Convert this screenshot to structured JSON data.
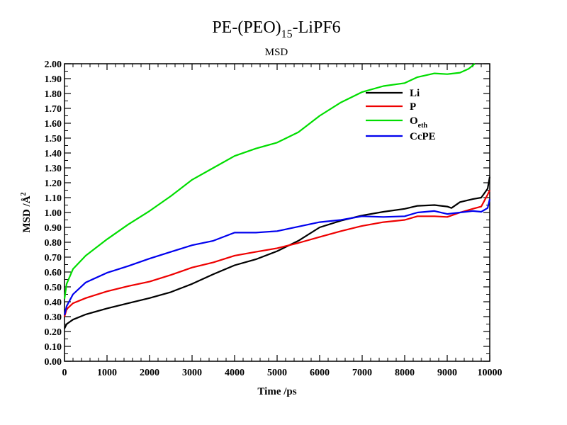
{
  "chart_data": {
    "type": "line",
    "title": {
      "main": "PE-(PEO)",
      "sub": "15",
      "rest": "-LiPF6"
    },
    "subtitle": "MSD",
    "xlabel": "Time /ps",
    "ylabel": {
      "main": "MSD /Å",
      "sup": "2"
    },
    "xlim": [
      0,
      10000
    ],
    "ylim": [
      0,
      2.0
    ],
    "xticks": [
      "0",
      "1000",
      "2000",
      "3000",
      "4000",
      "5000",
      "6000",
      "7000",
      "8000",
      "9000",
      "10000"
    ],
    "yticks": [
      "0.00",
      "0.10",
      "0.20",
      "0.30",
      "0.40",
      "0.50",
      "0.60",
      "0.70",
      "0.80",
      "0.90",
      "1.00",
      "1.10",
      "1.20",
      "1.30",
      "1.40",
      "1.50",
      "1.60",
      "1.70",
      "1.80",
      "1.90",
      "2.00"
    ],
    "grid": false,
    "legend_position": "top-right",
    "series": [
      {
        "name": "Li",
        "color": "#000000",
        "points": [
          [
            0,
            0.22
          ],
          [
            50,
            0.25
          ],
          [
            200,
            0.28
          ],
          [
            500,
            0.315
          ],
          [
            1000,
            0.355
          ],
          [
            1500,
            0.39
          ],
          [
            2000,
            0.425
          ],
          [
            2500,
            0.465
          ],
          [
            3000,
            0.52
          ],
          [
            3500,
            0.585
          ],
          [
            4000,
            0.645
          ],
          [
            4500,
            0.685
          ],
          [
            5000,
            0.74
          ],
          [
            5500,
            0.81
          ],
          [
            6000,
            0.9
          ],
          [
            6500,
            0.945
          ],
          [
            7000,
            0.98
          ],
          [
            7500,
            1.005
          ],
          [
            8000,
            1.025
          ],
          [
            8300,
            1.045
          ],
          [
            8700,
            1.05
          ],
          [
            9000,
            1.04
          ],
          [
            9100,
            1.03
          ],
          [
            9300,
            1.07
          ],
          [
            9600,
            1.09
          ],
          [
            9800,
            1.1
          ],
          [
            9950,
            1.16
          ],
          [
            10000,
            1.24
          ]
        ]
      },
      {
        "name": "P",
        "color": "#ee0000",
        "points": [
          [
            0,
            0.3
          ],
          [
            50,
            0.35
          ],
          [
            200,
            0.39
          ],
          [
            500,
            0.425
          ],
          [
            1000,
            0.47
          ],
          [
            1500,
            0.505
          ],
          [
            2000,
            0.535
          ],
          [
            2500,
            0.58
          ],
          [
            3000,
            0.63
          ],
          [
            3500,
            0.665
          ],
          [
            4000,
            0.71
          ],
          [
            4500,
            0.735
          ],
          [
            5000,
            0.76
          ],
          [
            5500,
            0.795
          ],
          [
            6000,
            0.835
          ],
          [
            6500,
            0.875
          ],
          [
            7000,
            0.91
          ],
          [
            7500,
            0.935
          ],
          [
            8000,
            0.95
          ],
          [
            8300,
            0.975
          ],
          [
            8700,
            0.975
          ],
          [
            9000,
            0.97
          ],
          [
            9300,
            1.0
          ],
          [
            9600,
            1.025
          ],
          [
            9800,
            1.04
          ],
          [
            9950,
            1.12
          ],
          [
            10000,
            1.15
          ]
        ]
      },
      {
        "name": "O",
        "name_sub": "eth",
        "color": "#00dd00",
        "points": [
          [
            0,
            0.42
          ],
          [
            50,
            0.52
          ],
          [
            200,
            0.62
          ],
          [
            500,
            0.71
          ],
          [
            1000,
            0.82
          ],
          [
            1500,
            0.92
          ],
          [
            2000,
            1.01
          ],
          [
            2500,
            1.11
          ],
          [
            3000,
            1.22
          ],
          [
            3500,
            1.3
          ],
          [
            4000,
            1.38
          ],
          [
            4500,
            1.43
          ],
          [
            5000,
            1.47
          ],
          [
            5500,
            1.54
          ],
          [
            6000,
            1.65
          ],
          [
            6500,
            1.74
          ],
          [
            7000,
            1.81
          ],
          [
            7500,
            1.85
          ],
          [
            8000,
            1.87
          ],
          [
            8300,
            1.91
          ],
          [
            8700,
            1.935
          ],
          [
            9000,
            1.93
          ],
          [
            9300,
            1.94
          ],
          [
            9500,
            1.965
          ],
          [
            9650,
            2.0
          ]
        ]
      },
      {
        "name": "CcPE",
        "color": "#0000ee",
        "points": [
          [
            0,
            0.31
          ],
          [
            50,
            0.37
          ],
          [
            200,
            0.45
          ],
          [
            500,
            0.53
          ],
          [
            1000,
            0.595
          ],
          [
            1500,
            0.64
          ],
          [
            2000,
            0.69
          ],
          [
            2500,
            0.735
          ],
          [
            3000,
            0.78
          ],
          [
            3500,
            0.81
          ],
          [
            4000,
            0.865
          ],
          [
            4500,
            0.865
          ],
          [
            5000,
            0.875
          ],
          [
            5500,
            0.905
          ],
          [
            6000,
            0.935
          ],
          [
            6500,
            0.95
          ],
          [
            7000,
            0.975
          ],
          [
            7500,
            0.97
          ],
          [
            8000,
            0.975
          ],
          [
            8300,
            1.0
          ],
          [
            8700,
            1.01
          ],
          [
            9000,
            0.99
          ],
          [
            9300,
            1.0
          ],
          [
            9600,
            1.01
          ],
          [
            9800,
            1.005
          ],
          [
            9950,
            1.03
          ],
          [
            10000,
            1.09
          ]
        ]
      }
    ]
  }
}
